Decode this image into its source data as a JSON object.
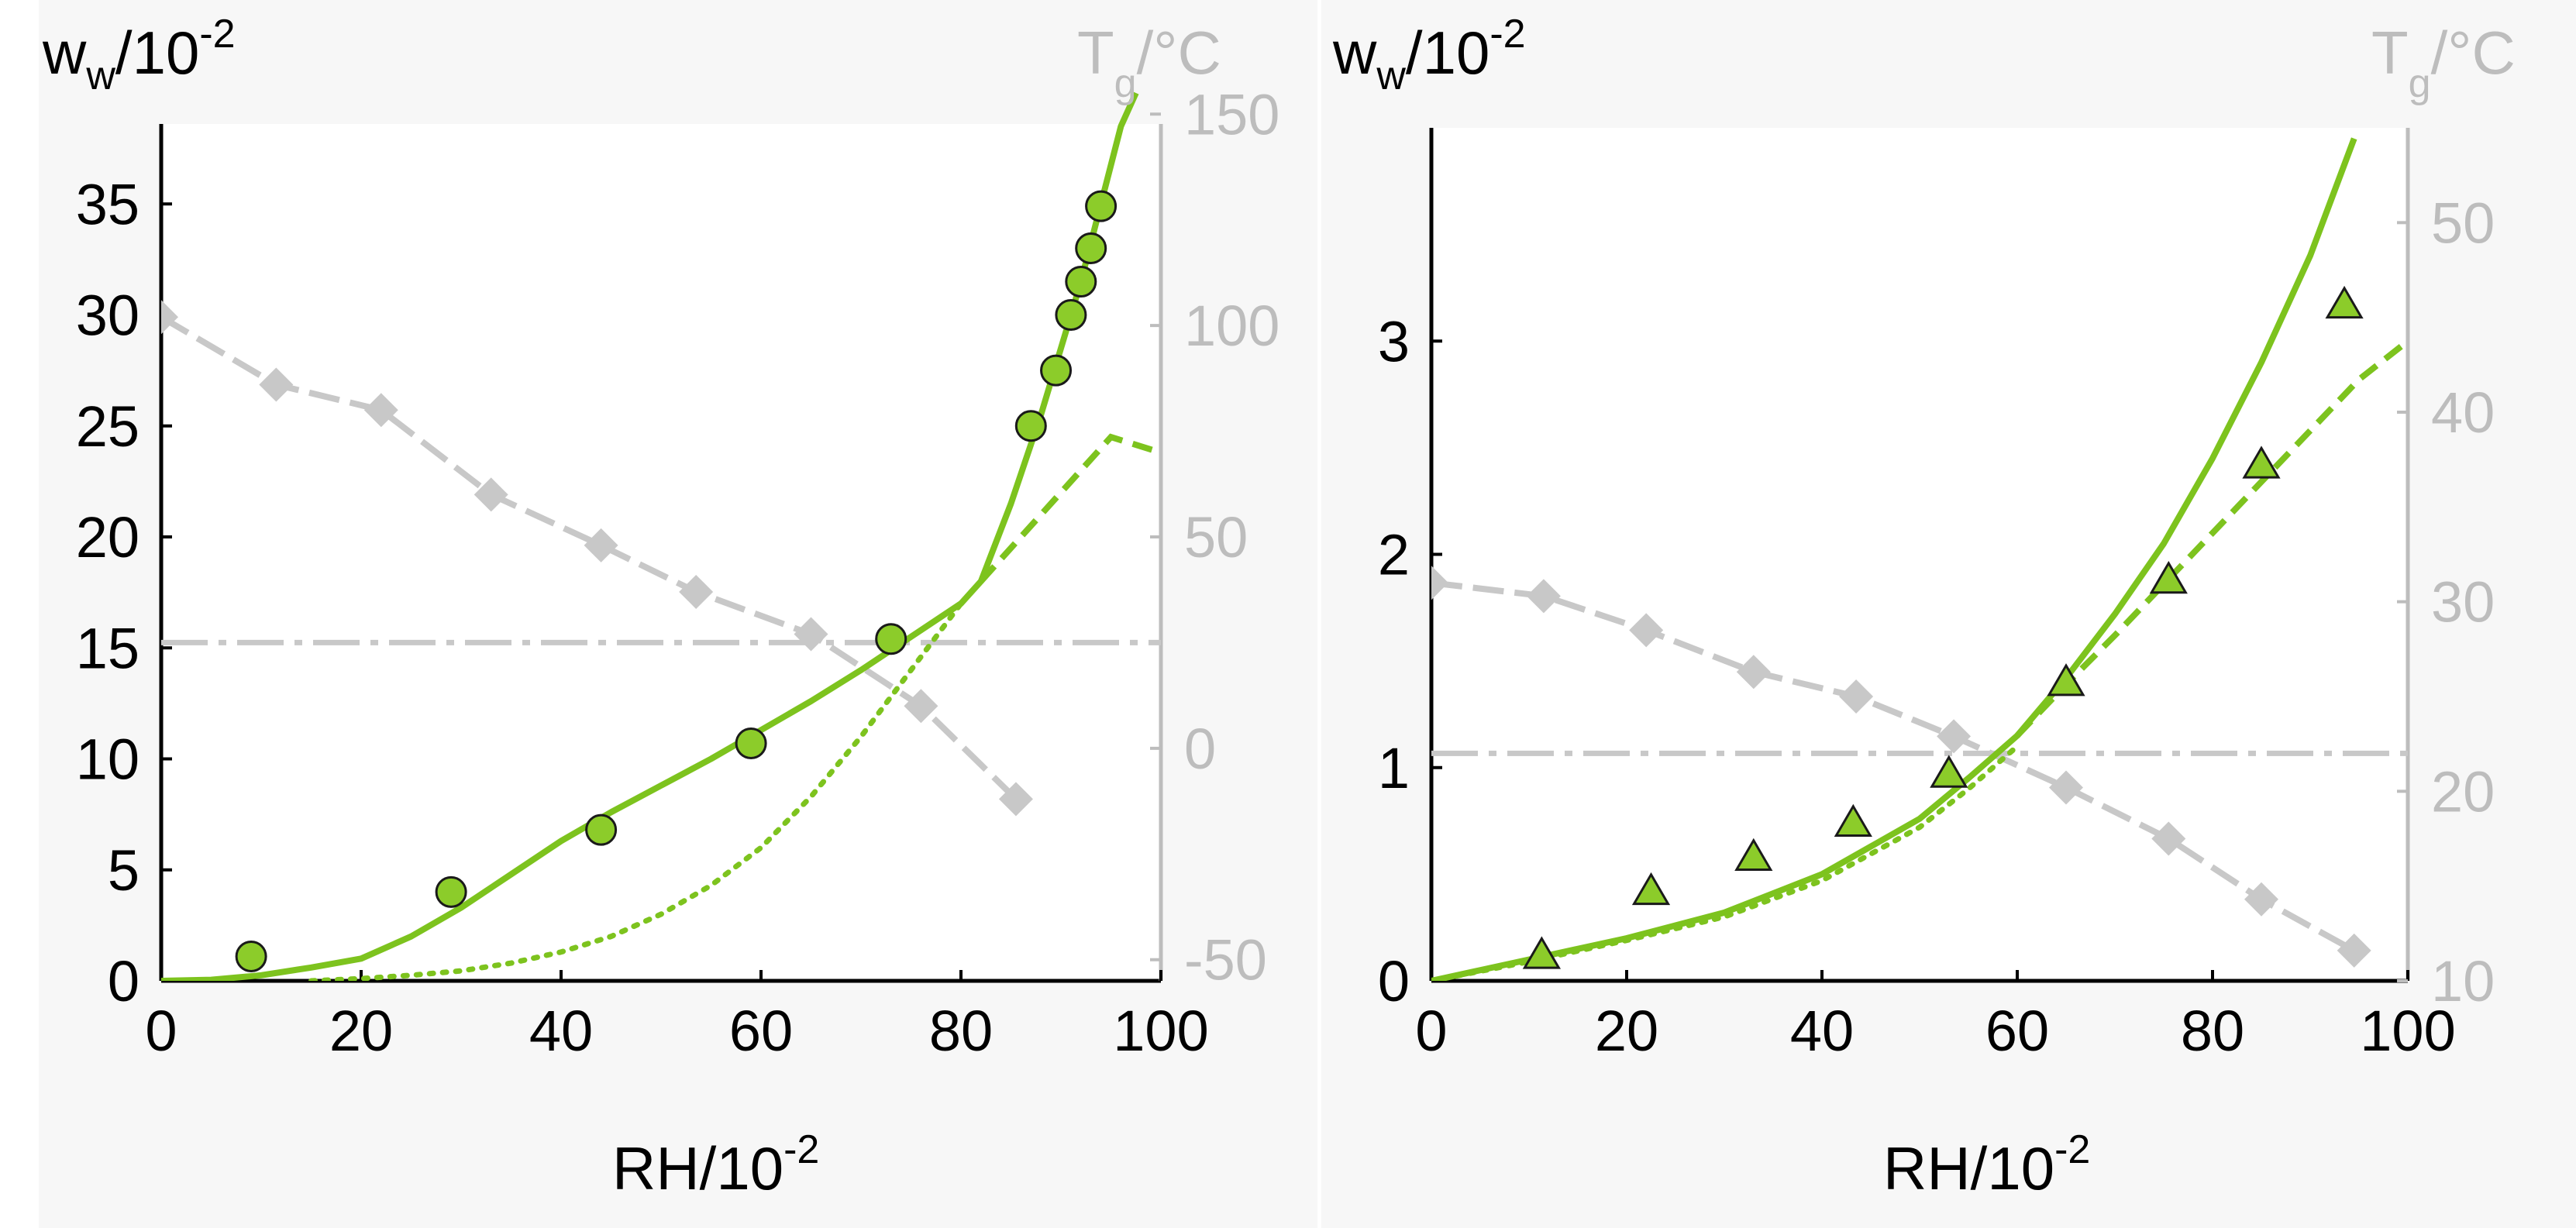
{
  "chart_data": [
    {
      "type": "line",
      "panel": "left",
      "xlabel": {
        "base": "RH/10",
        "exp": "-2"
      },
      "ylabel_left": {
        "base": "w",
        "sub": "w",
        "tail": "/10",
        "exp": "-2"
      },
      "ylabel_right": {
        "base": "T",
        "sub": "g",
        "tail": "/°C"
      },
      "xlim": [
        0,
        100
      ],
      "ylim_left": [
        0,
        40
      ],
      "ylim_right": [
        -55,
        155
      ],
      "xticks": [
        0,
        20,
        40,
        60,
        80,
        100
      ],
      "yticks_left": [
        0,
        5,
        10,
        15,
        20,
        25,
        30,
        35
      ],
      "yticks_right": [
        -50,
        0,
        50,
        100,
        150
      ],
      "colors": {
        "green": "#7dc31e",
        "marker_fill": "#8ccc2a",
        "gray": "#c8c8c8",
        "right_axis_text": "#bdbdbd"
      },
      "series": [
        {
          "name": "w_w measured",
          "style": "circles",
          "axis": "left",
          "x": [
            9,
            29,
            44,
            59,
            73,
            87,
            89.5,
            91,
            92,
            93,
            94
          ],
          "y": [
            1.1,
            4.0,
            6.8,
            10.7,
            15.4,
            25.0,
            27.5,
            30.0,
            31.5,
            33.0,
            34.9
          ]
        },
        {
          "name": "w_w model total",
          "style": "solid",
          "axis": "left",
          "x": [
            0,
            5,
            10,
            15,
            20,
            25,
            30,
            35,
            40,
            45,
            50,
            55,
            60,
            65,
            70,
            75,
            80,
            82,
            85,
            88,
            90,
            92,
            94,
            96,
            97.5
          ],
          "y": [
            0,
            0.05,
            0.25,
            0.6,
            1.0,
            2.0,
            3.3,
            4.8,
            6.3,
            7.6,
            8.8,
            10.0,
            11.3,
            12.6,
            14.0,
            15.5,
            17.0,
            18.0,
            21.5,
            25.5,
            28.5,
            31.5,
            35.0,
            38.5,
            40
          ]
        },
        {
          "name": "w_w model dashed",
          "style": "dashed",
          "axis": "left",
          "x": [
            82,
            85,
            90,
            95,
            100
          ],
          "y": [
            18.0,
            19.5,
            22.0,
            24.5,
            23.8
          ]
        },
        {
          "name": "w_w model dotted",
          "style": "dotted",
          "axis": "left",
          "x": [
            15,
            20,
            25,
            30,
            35,
            40,
            45,
            50,
            55,
            60,
            65,
            70,
            75,
            80,
            82
          ],
          "y": [
            0,
            0.1,
            0.25,
            0.45,
            0.8,
            1.3,
            2.0,
            3.0,
            4.3,
            6.0,
            8.3,
            11.0,
            14.0,
            17.0,
            18.0
          ]
        },
        {
          "name": "T_g",
          "style": "gray-diamond-dashed",
          "axis": "right",
          "x": [
            0,
            11.5,
            22,
            33,
            44,
            53.5,
            65,
            76,
            85.5
          ],
          "y": [
            102,
            86,
            80,
            60,
            48,
            37,
            27,
            10,
            -12
          ]
        },
        {
          "name": "T_g reference",
          "style": "gray-dashdot",
          "axis": "right",
          "x": [
            0,
            100
          ],
          "y": [
            25,
            25
          ]
        }
      ]
    },
    {
      "type": "line",
      "panel": "right",
      "xlabel": {
        "base": "RH/10",
        "exp": "-2"
      },
      "ylabel_left": {
        "base": "w",
        "sub": "w",
        "tail": "/10",
        "exp": "-2"
      },
      "ylabel_right": {
        "base": "T",
        "sub": "g",
        "tail": "/°C"
      },
      "xlim": [
        0,
        100
      ],
      "ylim_left": [
        0,
        4
      ],
      "ylim_right": [
        10,
        55
      ],
      "xticks": [
        0,
        20,
        40,
        60,
        80,
        100
      ],
      "yticks_left": [
        0,
        1,
        2,
        3
      ],
      "yticks_right": [
        10,
        20,
        30,
        40,
        50
      ],
      "colors": {
        "green": "#7dc31e",
        "marker_fill": "#8ccc2a",
        "gray": "#c8c8c8",
        "right_axis_text": "#bdbdbd"
      },
      "series": [
        {
          "name": "w_w measured",
          "style": "triangles",
          "axis": "left",
          "x": [
            11.3,
            22.5,
            33,
            43.2,
            53,
            65,
            75.5,
            85,
            93.5
          ],
          "y": [
            0.12,
            0.42,
            0.58,
            0.74,
            0.97,
            1.4,
            1.88,
            2.42,
            3.17
          ]
        },
        {
          "name": "w_w model solid",
          "style": "solid",
          "axis": "left",
          "x": [
            0,
            10,
            20,
            30,
            40,
            50,
            55,
            60,
            65,
            70,
            75,
            80,
            85,
            90,
            94.5
          ],
          "y": [
            0,
            0.1,
            0.2,
            0.32,
            0.5,
            0.76,
            0.95,
            1.15,
            1.42,
            1.72,
            2.05,
            2.45,
            2.9,
            3.4,
            3.95
          ]
        },
        {
          "name": "w_w model dashed",
          "style": "dashed",
          "axis": "left",
          "x": [
            60,
            65,
            70,
            75,
            80,
            85,
            90,
            95,
            100
          ],
          "y": [
            1.15,
            1.39,
            1.62,
            1.86,
            2.1,
            2.34,
            2.58,
            2.82,
            3.0
          ]
        },
        {
          "name": "w_w model dotted",
          "style": "dotted",
          "axis": "left",
          "x": [
            0,
            10,
            20,
            30,
            40,
            50,
            55,
            60
          ],
          "y": [
            0,
            0.09,
            0.19,
            0.3,
            0.47,
            0.72,
            0.9,
            1.1
          ]
        },
        {
          "name": "T_g",
          "style": "gray-diamond-dashed",
          "axis": "right",
          "x": [
            0,
            11.5,
            22,
            33,
            43.5,
            53.5,
            65,
            75.5,
            85,
            94.5
          ],
          "y": [
            31,
            30.3,
            28.5,
            26.3,
            25,
            22.9,
            20.2,
            17.5,
            14.3,
            11.6
          ]
        },
        {
          "name": "T_g reference",
          "style": "gray-dashdot",
          "axis": "right",
          "x": [
            0,
            100
          ],
          "y": [
            22,
            22
          ]
        }
      ]
    }
  ]
}
